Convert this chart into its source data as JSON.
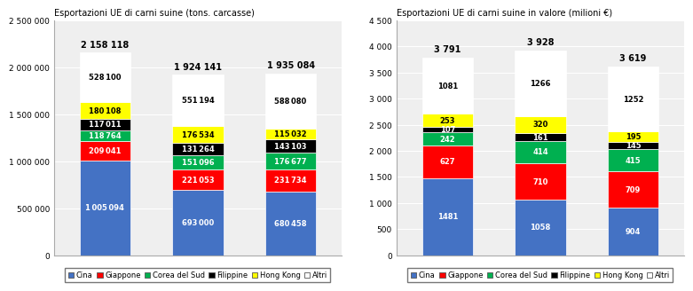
{
  "left_title": "Esportazioni UE di carni suine (tons. carcasse)",
  "right_title": "Esportazioni UE di carni suine in valore (milioni €)",
  "left_totals": [
    "2 158 118",
    "1 924 141",
    "1 935 084"
  ],
  "right_totals": [
    "3 791",
    "3 928",
    "3 619"
  ],
  "left_data": {
    "Cina": [
      1005094,
      693000,
      680458
    ],
    "Giappone": [
      209041,
      221053,
      231734
    ],
    "Corea del Sud": [
      118764,
      151096,
      176677
    ],
    "Filippine": [
      117011,
      131264,
      143103
    ],
    "Hong Kong": [
      180108,
      176534,
      115032
    ],
    "Altri": [
      528100,
      551194,
      588080
    ]
  },
  "right_data": {
    "Cina": [
      1481,
      1058,
      904
    ],
    "Giappone": [
      627,
      710,
      709
    ],
    "Corea del Sud": [
      242,
      414,
      415
    ],
    "Filippine": [
      107,
      161,
      145
    ],
    "Hong Kong": [
      253,
      320,
      195
    ],
    "Altri": [
      1081,
      1266,
      1252
    ]
  },
  "colors": {
    "Cina": "#4472C4",
    "Giappone": "#FF0000",
    "Corea del Sud": "#00B050",
    "Filippine": "#000000",
    "Hong Kong": "#FFFF00",
    "Altri": "#FFFFFF"
  },
  "left_ylim": [
    0,
    2500000
  ],
  "left_yticks": [
    0,
    500000,
    1000000,
    1500000,
    2000000,
    2500000
  ],
  "left_yticklabels": [
    "0",
    "500 000",
    "1 000 000",
    "1 500 000",
    "2 000 000",
    "2 500 000"
  ],
  "right_ylim": [
    0,
    4500
  ],
  "right_yticks": [
    0,
    500,
    1000,
    1500,
    2000,
    2500,
    3000,
    3500,
    4000,
    4500
  ],
  "right_yticklabels": [
    "0",
    "500",
    "1 000",
    "1 500",
    "2 000",
    "2 500",
    "3 000",
    "3 500",
    "4 000",
    "4 500"
  ],
  "legend_labels": [
    "Cina",
    "Giappone",
    "Corea del Sud",
    "Filippine",
    "Hong Kong",
    "Altri"
  ],
  "bar_width": 0.55,
  "bg_color": "#EFEFEF",
  "left_text_colors": {
    "Cina": "white",
    "Giappone": "white",
    "Corea del Sud": "white",
    "Filippine": "white",
    "Hong Kong": "black",
    "Altri": "black"
  },
  "right_text_colors": {
    "Cina": "white",
    "Giappone": "white",
    "Corea del Sud": "white",
    "Filippine": "white",
    "Hong Kong": "black",
    "Altri": "black"
  }
}
